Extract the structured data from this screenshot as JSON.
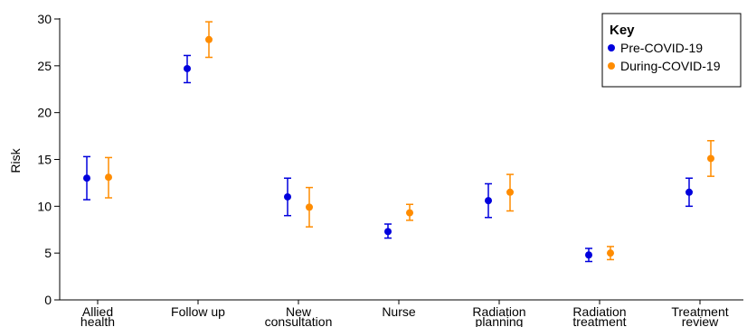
{
  "chart_data": {
    "type": "scatter",
    "ylabel": "Risk",
    "xlabel": "",
    "ylim": [
      0,
      30
    ],
    "yticks": [
      0,
      5,
      10,
      15,
      20,
      25,
      30
    ],
    "categories": [
      [
        "Allied",
        "health"
      ],
      [
        "Follow up"
      ],
      [
        "New",
        "consultation"
      ],
      [
        "Nurse"
      ],
      [
        "Radiation",
        "planning"
      ],
      [
        "Radiation",
        "treatment"
      ],
      [
        "Treatment",
        "review"
      ]
    ],
    "legend": {
      "title": "Key",
      "position": "top-right"
    },
    "series": [
      {
        "name": "Pre-COVID-19",
        "color": "#0000dd",
        "values": [
          13.0,
          24.7,
          11.0,
          7.3,
          10.6,
          4.8,
          11.5
        ],
        "lower": [
          10.7,
          23.2,
          9.0,
          6.6,
          8.8,
          4.1,
          10.0
        ],
        "upper": [
          15.3,
          26.1,
          13.0,
          8.1,
          12.4,
          5.5,
          13.0
        ]
      },
      {
        "name": "During-COVID-19",
        "color": "#ff8c00",
        "values": [
          13.1,
          27.8,
          9.9,
          9.3,
          11.5,
          5.0,
          15.1
        ],
        "lower": [
          10.9,
          25.9,
          7.8,
          8.5,
          9.5,
          4.3,
          13.2
        ],
        "upper": [
          15.2,
          29.7,
          12.0,
          10.2,
          13.4,
          5.7,
          17.0
        ]
      }
    ]
  }
}
